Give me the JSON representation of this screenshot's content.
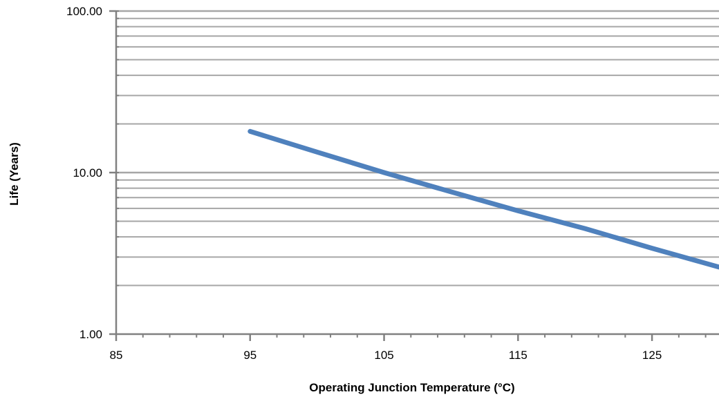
{
  "chart_data": {
    "type": "line",
    "title": "",
    "xlabel": "Operating Junction Temperature (°C)",
    "ylabel": "Life (Years)",
    "x_ticks": [
      85,
      95,
      105,
      115,
      125
    ],
    "x_tick_labels": [
      "85",
      "95",
      "105",
      "115",
      "125"
    ],
    "xlim": [
      85,
      130
    ],
    "y_scale": "log",
    "ylim": [
      1,
      100
    ],
    "y_ticks": [
      1,
      10,
      100
    ],
    "y_tick_labels": [
      "1.00",
      "10.00",
      "100.00"
    ],
    "grid": true,
    "legend": "none",
    "line_color": "#4F81BD",
    "grid_color": "#A6A6A6",
    "series": [
      {
        "x": [
          95,
          100,
          105,
          110,
          115,
          120,
          125,
          130
        ],
        "y": [
          18,
          13.4,
          10.0,
          7.6,
          5.8,
          4.5,
          3.4,
          2.6
        ]
      }
    ]
  }
}
